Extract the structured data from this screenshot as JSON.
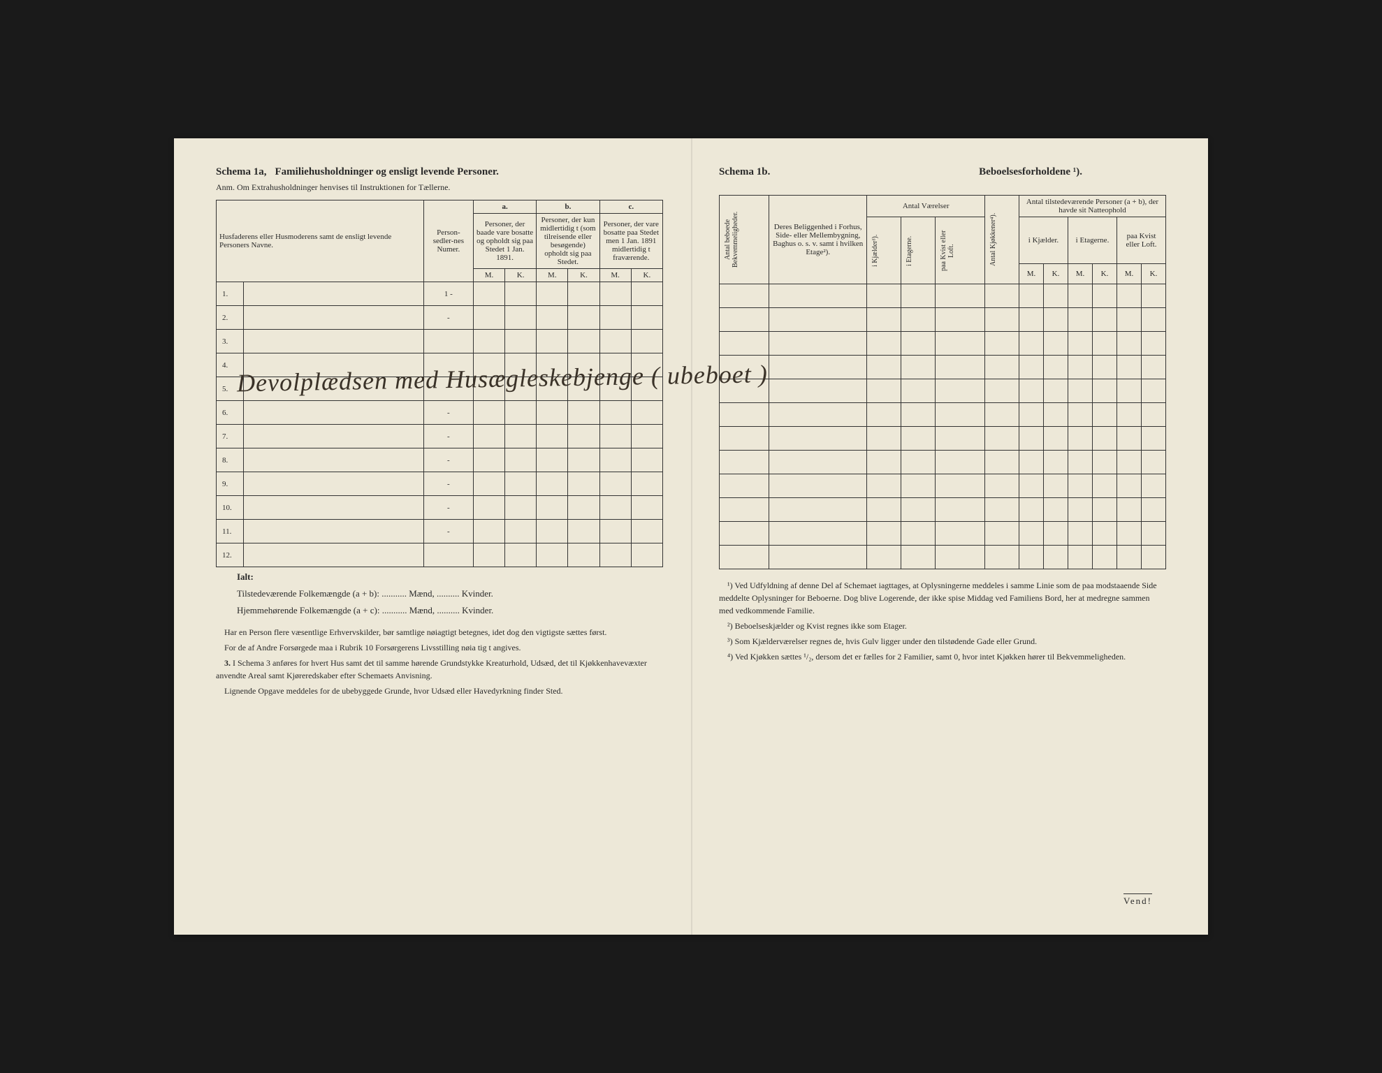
{
  "colors": {
    "paper_bg": "#ede8d8",
    "text": "#2a2a2a",
    "border": "#333333",
    "handwriting": "#3a3228"
  },
  "left": {
    "schema_label": "Schema 1a,",
    "schema_title": "Familiehusholdninger og ensligt levende Personer.",
    "anm": "Anm. Om Extrahusholdninger henvises til Instruktionen for Tællerne.",
    "col_names": "Husfaderens eller Husmoderens samt de ensligt levende Personers Navne.",
    "col_person": "Person-sedler-nes Numer.",
    "sec_a": "a.",
    "sec_b": "b.",
    "sec_c": "c.",
    "desc_a": "Personer, der baade vare bosatte og opholdt sig paa Stedet 1 Jan. 1891.",
    "desc_b": "Personer, der kun midlertidig t (som tilreisende eller besøgende) opholdt sig paa Stedet.",
    "desc_c": "Personer, der vare bosatte paa Stedet men 1 Jan. 1891 midlertidig t fraværende.",
    "m": "M.",
    "k": "K.",
    "rows": [
      "1.",
      "2.",
      "3.",
      "4.",
      "5.",
      "6.",
      "7.",
      "8.",
      "9.",
      "10.",
      "11.",
      "12."
    ],
    "person_vals": [
      "1 -",
      "-",
      "",
      "",
      "",
      "-",
      "-",
      "-",
      "-",
      "-",
      "-",
      ""
    ],
    "ialt": "Ialt:",
    "sum1": "Tilstedeværende Folkemængde (a + b): ........... Mænd, .......... Kvinder.",
    "sum2": "Hjemmehørende Folkemængde (a + c): ........... Mænd, .......... Kvinder.",
    "foot1": "Har en Person flere væsentlige Erhvervskilder, bør samtlige nøiagtigt betegnes, idet dog den vigtigste sættes først.",
    "foot2": "For de af Andre Forsørgede maa i Rubrik 10 Forsørgerens Livsstilling nøia tig t angives.",
    "foot3_label": "3.",
    "foot3": "I Schema 3 anføres for hvert Hus samt det til samme hørende Grundstykke Kreaturhold, Udsæd, det til Kjøkkenhavevæxter anvendte Areal samt Kjøreredskaber efter Schemaets Anvisning.",
    "foot4": "Lignende Opgave meddeles for de ubebyggede Grunde, hvor Udsæd eller Havedyrkning finder Sted."
  },
  "right": {
    "schema_label": "Schema 1b.",
    "schema_title": "Beboelsesforholdene ¹).",
    "col_antal_bek": "Antal beboede Bekvemmeligheder.",
    "col_belig": "Deres Beliggenhed i Forhus, Side- eller Mellembygning, Baghus o. s. v. samt i hvilken Etage²).",
    "col_antal_vaer": "Antal Værelser",
    "col_kjok": "Antal Kjøkkener⁴).",
    "col_tilstede": "Antal tilstedeværende Personer (a + b), der havde sit Natteophold",
    "sub_kjael": "i Kjælder³).",
    "sub_etag": "i Etagerne.",
    "sub_kvist": "paa Kvist eller Loft.",
    "sub2_kjael": "i Kjælder.",
    "sub2_etag": "i Etagerne.",
    "sub2_kvist": "paa Kvist eller Loft.",
    "m": "M.",
    "k": "K.",
    "fn1": "¹) Ved Udfyldning af denne Del af Schemaet iagttages, at Oplysningerne meddeles i samme Linie som de paa modstaaende Side meddelte Oplysninger for Beboerne. Dog blive Logerende, der ikke spise Middag ved Familiens Bord, her at medregne sammen med vedkommende Familie.",
    "fn2": "²) Beboelseskjælder og Kvist regnes ikke som Etager.",
    "fn3": "³) Som Kjælderværelser regnes de, hvis Gulv ligger under den tilstødende Gade eller Grund.",
    "fn4": "⁴) Ved Kjøkken sættes ¹/₂, dersom det er fælles for 2 Familier, samt 0, hvor intet Kjøkken hører til Bekvemmeligheden.",
    "vendi": "Vend!"
  },
  "handwriting": {
    "line": "Devolplædsen med Husægleskebjenge ( ubeboet )"
  }
}
